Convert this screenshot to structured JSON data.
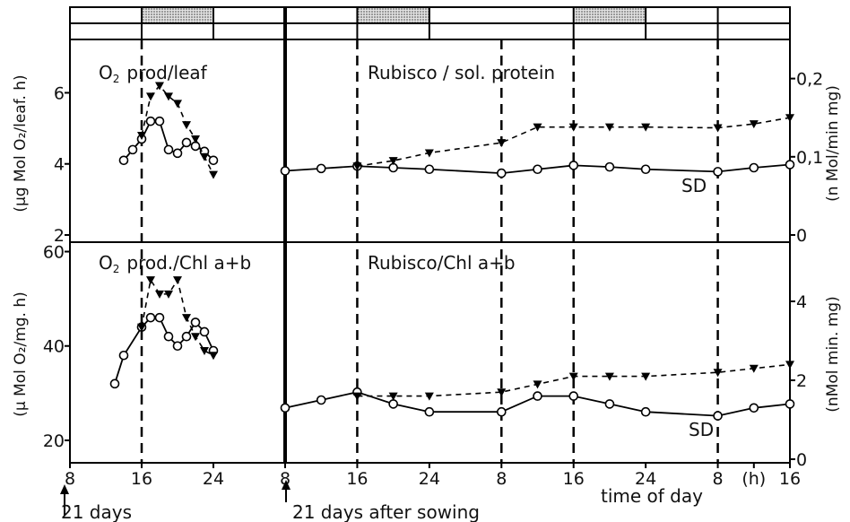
{
  "chart_data": {
    "type": "line",
    "x_unit": "h",
    "x_tick_labels": [
      "8",
      "16",
      "24",
      "8",
      "16",
      "24",
      "8",
      "16",
      "24",
      "8",
      "(h)",
      "16"
    ],
    "xlabel": "time of day",
    "annotations": {
      "left_start": "21 days",
      "right_start": "21 days after sowing",
      "sd_label": "SD"
    },
    "light_bar": {
      "dark_periods_hours": [
        [
          16,
          24
        ],
        [
          40,
          48
        ],
        [
          64,
          72
        ]
      ]
    },
    "panels": [
      {
        "id": "top_left",
        "title_sub": "O",
        "title_subscript": "2",
        "title_rest": "prod/leaf",
        "ylabel": "(µg Mol O₂/leaf. h)",
        "ylim": [
          2,
          7.5
        ],
        "yticks": [
          "2",
          "4",
          "6"
        ],
        "series": [
          {
            "style": "solid-open-circle",
            "x": [
              14,
              15,
              16,
              17,
              18,
              19,
              20,
              21,
              22,
              23,
              24
            ],
            "y": [
              4.1,
              4.4,
              4.7,
              5.2,
              5.2,
              4.4,
              4.3,
              4.6,
              4.5,
              4.35,
              4.1
            ]
          },
          {
            "style": "dashed-filled-triangle",
            "x": [
              16,
              17,
              18,
              19,
              20,
              21,
              22,
              23,
              24
            ],
            "y": [
              4.8,
              5.9,
              6.2,
              5.9,
              5.7,
              5.1,
              4.7,
              4.2,
              3.7
            ]
          }
        ]
      },
      {
        "id": "top_right",
        "title": "Rubisco / sol. protein",
        "ylabel_right": "(n Mol/min mg)",
        "ylim_right": [
          0,
          0.25
        ],
        "yticks_right": [
          "0",
          "0,1",
          "0,2"
        ],
        "series": [
          {
            "style": "solid-open-circle",
            "x": [
              8,
              12,
              16,
              20,
              24,
              32,
              36,
              40,
              44,
              48,
              56,
              60,
              64
            ],
            "y": [
              0.082,
              0.085,
              0.088,
              0.086,
              0.084,
              0.079,
              0.084,
              0.089,
              0.087,
              0.084,
              0.081,
              0.086,
              0.09
            ]
          },
          {
            "style": "dashed-filled-triangle",
            "x": [
              16,
              20,
              24,
              32,
              36,
              40,
              44,
              48,
              56,
              60,
              64
            ],
            "y": [
              0.088,
              0.095,
              0.105,
              0.118,
              0.138,
              0.138,
              0.138,
              0.138,
              0.137,
              0.142,
              0.15
            ]
          }
        ]
      },
      {
        "id": "bottom_left",
        "title_sub": "O",
        "title_subscript": "2",
        "title_rest": "prod./Chl a+b",
        "ylabel": "(µ Mol O₂/mg. h)",
        "ylim": [
          16,
          62
        ],
        "yticks": [
          "20",
          "40",
          "60"
        ],
        "series": [
          {
            "style": "solid-open-circle",
            "x": [
              13,
              14,
              16,
              17,
              18,
              19,
              20,
              21,
              22,
              23,
              24
            ],
            "y": [
              32,
              38,
              44,
              46,
              46,
              42,
              40,
              42,
              45,
              43,
              39
            ]
          },
          {
            "style": "dashed-filled-triangle",
            "x": [
              16,
              17,
              18,
              19,
              20,
              21,
              22,
              23,
              24
            ],
            "y": [
              44,
              54,
              51,
              51,
              54,
              46,
              42,
              39,
              38
            ]
          }
        ]
      },
      {
        "id": "bottom_right",
        "title": "Rubisco/Chl a+b",
        "ylabel_right": "(nMol min. mg)",
        "ylim_right": [
          0,
          5.5
        ],
        "yticks_right": [
          "0",
          "2",
          "4"
        ],
        "series": [
          {
            "style": "solid-open-circle",
            "x": [
              8,
              12,
              16,
              20,
              24,
              32,
              36,
              40,
              44,
              48,
              56,
              60,
              64
            ],
            "y": [
              1.3,
              1.5,
              1.7,
              1.4,
              1.2,
              1.2,
              1.6,
              1.6,
              1.4,
              1.2,
              1.1,
              1.3,
              1.4
            ]
          },
          {
            "style": "dashed-filled-triangle",
            "x": [
              16,
              20,
              24,
              32,
              36,
              40,
              44,
              48,
              56,
              60,
              64
            ],
            "y": [
              1.6,
              1.6,
              1.6,
              1.7,
              1.9,
              2.1,
              2.1,
              2.1,
              2.2,
              2.3,
              2.4
            ]
          }
        ]
      }
    ]
  }
}
